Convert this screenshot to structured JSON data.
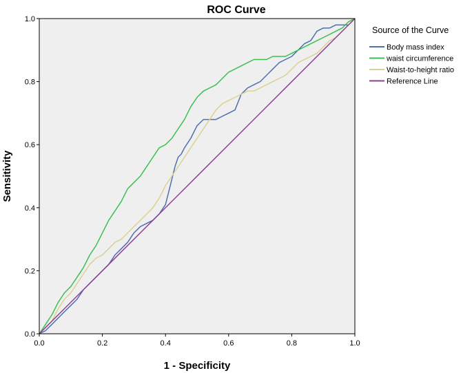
{
  "chart_data": {
    "type": "line",
    "title": "ROC Curve",
    "xlabel": "1 - Specificity",
    "ylabel": "Sensitivity",
    "xlim": [
      0,
      1
    ],
    "ylim": [
      0,
      1
    ],
    "x_ticks": [
      "0.0",
      "0.2",
      "0.4",
      "0.6",
      "0.8",
      "1.0"
    ],
    "y_ticks": [
      "0.0",
      "0.2",
      "0.4",
      "0.6",
      "0.8",
      "1.0"
    ],
    "legend_title": "Source of the Curve",
    "legend_position": "right",
    "grid": false,
    "series": [
      {
        "name": "Body mass index",
        "color": "#4f6fb0",
        "x": [
          0,
          0.02,
          0.04,
          0.06,
          0.08,
          0.1,
          0.12,
          0.14,
          0.16,
          0.18,
          0.2,
          0.22,
          0.24,
          0.26,
          0.28,
          0.3,
          0.32,
          0.34,
          0.36,
          0.38,
          0.4,
          0.41,
          0.42,
          0.43,
          0.44,
          0.45,
          0.46,
          0.48,
          0.5,
          0.52,
          0.54,
          0.56,
          0.58,
          0.6,
          0.62,
          0.64,
          0.66,
          0.68,
          0.7,
          0.72,
          0.74,
          0.76,
          0.78,
          0.8,
          0.82,
          0.84,
          0.86,
          0.88,
          0.9,
          0.92,
          0.94,
          0.96,
          0.98,
          1.0
        ],
        "y": [
          0,
          0.01,
          0.03,
          0.05,
          0.07,
          0.09,
          0.11,
          0.14,
          0.16,
          0.18,
          0.2,
          0.22,
          0.25,
          0.27,
          0.29,
          0.32,
          0.34,
          0.35,
          0.36,
          0.38,
          0.41,
          0.45,
          0.49,
          0.53,
          0.56,
          0.57,
          0.59,
          0.62,
          0.66,
          0.68,
          0.68,
          0.68,
          0.69,
          0.7,
          0.71,
          0.76,
          0.78,
          0.79,
          0.8,
          0.82,
          0.84,
          0.86,
          0.87,
          0.88,
          0.9,
          0.92,
          0.93,
          0.96,
          0.97,
          0.97,
          0.98,
          0.98,
          0.98,
          1.0
        ]
      },
      {
        "name": "waist circumference",
        "color": "#3cbf50",
        "x": [
          0,
          0.02,
          0.04,
          0.06,
          0.08,
          0.1,
          0.12,
          0.14,
          0.16,
          0.18,
          0.2,
          0.22,
          0.24,
          0.26,
          0.28,
          0.3,
          0.32,
          0.34,
          0.36,
          0.38,
          0.4,
          0.42,
          0.44,
          0.46,
          0.48,
          0.5,
          0.52,
          0.54,
          0.56,
          0.58,
          0.6,
          0.62,
          0.64,
          0.66,
          0.68,
          0.7,
          0.72,
          0.74,
          0.76,
          0.78,
          0.8,
          0.82,
          0.84,
          0.86,
          0.88,
          0.9,
          0.92,
          0.94,
          0.96,
          0.98,
          1.0
        ],
        "y": [
          0,
          0.03,
          0.06,
          0.1,
          0.13,
          0.15,
          0.18,
          0.21,
          0.25,
          0.28,
          0.32,
          0.36,
          0.39,
          0.42,
          0.46,
          0.48,
          0.5,
          0.53,
          0.56,
          0.59,
          0.6,
          0.62,
          0.65,
          0.68,
          0.72,
          0.75,
          0.77,
          0.78,
          0.79,
          0.81,
          0.83,
          0.84,
          0.85,
          0.86,
          0.87,
          0.87,
          0.87,
          0.88,
          0.88,
          0.88,
          0.89,
          0.9,
          0.91,
          0.92,
          0.93,
          0.94,
          0.95,
          0.96,
          0.97,
          0.99,
          1.0
        ]
      },
      {
        "name": "Waist-to-height ratio",
        "color": "#d9d291",
        "x": [
          0,
          0.02,
          0.04,
          0.06,
          0.08,
          0.1,
          0.12,
          0.14,
          0.16,
          0.18,
          0.2,
          0.22,
          0.24,
          0.26,
          0.28,
          0.3,
          0.32,
          0.34,
          0.36,
          0.38,
          0.4,
          0.42,
          0.44,
          0.46,
          0.48,
          0.5,
          0.52,
          0.54,
          0.56,
          0.58,
          0.6,
          0.62,
          0.64,
          0.66,
          0.68,
          0.7,
          0.72,
          0.74,
          0.76,
          0.78,
          0.8,
          0.82,
          0.84,
          0.86,
          0.88,
          0.9,
          0.92,
          0.94,
          0.96,
          0.98,
          1.0
        ],
        "y": [
          0,
          0.02,
          0.04,
          0.08,
          0.11,
          0.13,
          0.16,
          0.19,
          0.22,
          0.24,
          0.25,
          0.27,
          0.29,
          0.3,
          0.32,
          0.34,
          0.36,
          0.38,
          0.4,
          0.43,
          0.47,
          0.5,
          0.53,
          0.56,
          0.59,
          0.62,
          0.65,
          0.68,
          0.71,
          0.73,
          0.74,
          0.75,
          0.76,
          0.77,
          0.77,
          0.78,
          0.79,
          0.8,
          0.81,
          0.82,
          0.84,
          0.86,
          0.87,
          0.88,
          0.89,
          0.91,
          0.93,
          0.94,
          0.96,
          0.98,
          1.0
        ]
      },
      {
        "name": "Reference Line",
        "color": "#8c3c96",
        "x": [
          0,
          1
        ],
        "y": [
          0,
          1
        ]
      }
    ]
  }
}
